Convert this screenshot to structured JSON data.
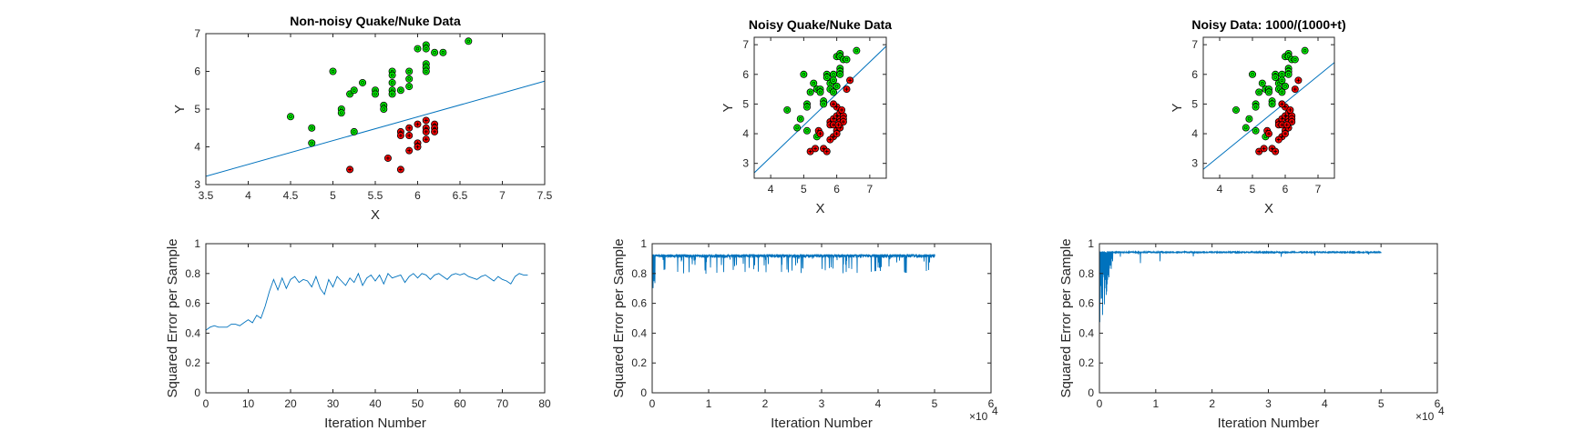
{
  "figure": {
    "background": "#ffffff"
  },
  "chart_data": [
    {
      "type": "scatter",
      "title": "Non-noisy Quake/Nuke Data",
      "xlabel": "X",
      "ylabel": "Y",
      "xlim": [
        3.5,
        7.5
      ],
      "ylim": [
        3,
        7
      ],
      "xticks": [
        3.5,
        4,
        4.5,
        5,
        5.5,
        6,
        6.5,
        7,
        7.5
      ],
      "yticks": [
        3,
        4,
        5,
        6,
        7
      ],
      "series": [
        {
          "color": "#00ff00",
          "marker": "circle-o",
          "points": [
            [
              4.5,
              4.8
            ],
            [
              4.75,
              4.5
            ],
            [
              4.75,
              4.1
            ],
            [
              5.0,
              6.0
            ],
            [
              5.1,
              5.0
            ],
            [
              5.1,
              4.9
            ],
            [
              5.2,
              5.4
            ],
            [
              5.25,
              5.5
            ],
            [
              5.35,
              5.7
            ],
            [
              5.25,
              4.4
            ],
            [
              5.5,
              5.5
            ],
            [
              5.5,
              5.4
            ],
            [
              5.6,
              5.1
            ],
            [
              5.6,
              5.0
            ],
            [
              5.7,
              6.0
            ],
            [
              5.7,
              5.9
            ],
            [
              5.7,
              5.7
            ],
            [
              5.7,
              5.5
            ],
            [
              5.7,
              5.4
            ],
            [
              5.8,
              5.5
            ],
            [
              5.9,
              6.0
            ],
            [
              5.9,
              5.8
            ],
            [
              5.9,
              5.6
            ],
            [
              6.0,
              6.6
            ],
            [
              6.1,
              6.7
            ],
            [
              6.1,
              6.6
            ],
            [
              6.1,
              6.2
            ],
            [
              6.1,
              6.1
            ],
            [
              6.1,
              6.0
            ],
            [
              6.2,
              6.5
            ],
            [
              6.3,
              6.5
            ],
            [
              6.6,
              6.8
            ]
          ]
        },
        {
          "color": "#ff0000",
          "marker": "circle-plus",
          "points": [
            [
              5.2,
              3.4
            ],
            [
              5.65,
              3.7
            ],
            [
              5.8,
              3.4
            ],
            [
              5.8,
              4.4
            ],
            [
              5.8,
              4.3
            ],
            [
              5.9,
              4.5
            ],
            [
              5.9,
              4.3
            ],
            [
              5.9,
              3.9
            ],
            [
              6.0,
              4.6
            ],
            [
              6.0,
              4.1
            ],
            [
              6.0,
              4.0
            ],
            [
              6.1,
              4.7
            ],
            [
              6.1,
              4.5
            ],
            [
              6.1,
              4.4
            ],
            [
              6.1,
              4.2
            ],
            [
              6.2,
              4.6
            ],
            [
              6.2,
              4.5
            ],
            [
              6.2,
              4.4
            ]
          ]
        }
      ],
      "line": {
        "color": "#0072bd",
        "from": [
          3.5,
          3.22
        ],
        "to": [
          7.5,
          5.74
        ]
      }
    },
    {
      "type": "scatter",
      "title": "Noisy Quake/Nuke Data",
      "xlabel": "X",
      "ylabel": "Y",
      "xlim": [
        3.5,
        7.5
      ],
      "ylim": [
        2.5,
        7.25
      ],
      "xticks": [
        4,
        5,
        6,
        7
      ],
      "yticks": [
        3,
        4,
        5,
        6,
        7
      ],
      "series": [
        {
          "color": "#00ff00",
          "marker": "circle-o",
          "points": [
            [
              4.5,
              4.8
            ],
            [
              4.9,
              4.5
            ],
            [
              5.0,
              6.0
            ],
            [
              5.1,
              5.0
            ],
            [
              5.1,
              4.9
            ],
            [
              5.2,
              5.4
            ],
            [
              5.3,
              5.7
            ],
            [
              5.1,
              4.1
            ],
            [
              4.8,
              4.2
            ],
            [
              5.4,
              5.5
            ],
            [
              5.5,
              5.5
            ],
            [
              5.5,
              5.4
            ],
            [
              5.6,
              5.1
            ],
            [
              5.6,
              5.0
            ],
            [
              5.7,
              6.0
            ],
            [
              5.7,
              5.9
            ],
            [
              5.8,
              5.7
            ],
            [
              5.8,
              5.5
            ],
            [
              5.9,
              5.4
            ],
            [
              5.9,
              6.0
            ],
            [
              5.9,
              5.8
            ],
            [
              6.0,
              5.6
            ],
            [
              6.0,
              6.6
            ],
            [
              6.1,
              6.7
            ],
            [
              6.1,
              6.6
            ],
            [
              6.1,
              6.2
            ],
            [
              6.1,
              6.1
            ],
            [
              6.1,
              6.0
            ],
            [
              6.2,
              6.5
            ],
            [
              6.3,
              6.5
            ],
            [
              6.6,
              6.8
            ],
            [
              5.4,
              3.9
            ]
          ]
        },
        {
          "color": "#ff0000",
          "marker": "circle-plus",
          "points": [
            [
              5.2,
              3.4
            ],
            [
              5.35,
              3.5
            ],
            [
              5.45,
              4.1
            ],
            [
              5.5,
              4.0
            ],
            [
              5.6,
              3.5
            ],
            [
              5.7,
              3.4
            ],
            [
              5.8,
              4.4
            ],
            [
              5.8,
              4.3
            ],
            [
              5.9,
              4.5
            ],
            [
              5.9,
              4.3
            ],
            [
              5.9,
              3.9
            ],
            [
              6.0,
              4.6
            ],
            [
              6.0,
              4.1
            ],
            [
              6.0,
              4.0
            ],
            [
              6.1,
              4.7
            ],
            [
              6.1,
              4.5
            ],
            [
              6.1,
              4.4
            ],
            [
              6.1,
              4.2
            ],
            [
              6.2,
              4.6
            ],
            [
              6.2,
              4.5
            ],
            [
              6.2,
              4.4
            ],
            [
              5.8,
              3.8
            ],
            [
              6.0,
              4.9
            ],
            [
              6.3,
              5.5
            ],
            [
              6.4,
              5.8
            ],
            [
              5.9,
              5.0
            ],
            [
              6.05,
              4.3
            ],
            [
              6.15,
              4.8
            ]
          ]
        }
      ],
      "line": {
        "color": "#0072bd",
        "from": [
          3.5,
          2.68
        ],
        "to": [
          7.5,
          6.95
        ]
      }
    },
    {
      "type": "scatter",
      "title": "Noisy Data: 1000/(1000+t)",
      "xlabel": "X",
      "ylabel": "Y",
      "xlim": [
        3.5,
        7.5
      ],
      "ylim": [
        2.5,
        7.25
      ],
      "xticks": [
        4,
        5,
        6,
        7
      ],
      "yticks": [
        3,
        4,
        5,
        6,
        7
      ],
      "series": [
        {
          "color": "#00ff00",
          "marker": "circle-o",
          "points": [
            [
              4.5,
              4.8
            ],
            [
              4.9,
              4.5
            ],
            [
              5.0,
              6.0
            ],
            [
              5.1,
              5.0
            ],
            [
              5.1,
              4.9
            ],
            [
              5.2,
              5.4
            ],
            [
              5.3,
              5.7
            ],
            [
              5.1,
              4.1
            ],
            [
              4.8,
              4.2
            ],
            [
              5.4,
              5.5
            ],
            [
              5.5,
              5.5
            ],
            [
              5.5,
              5.4
            ],
            [
              5.6,
              5.1
            ],
            [
              5.6,
              5.0
            ],
            [
              5.7,
              6.0
            ],
            [
              5.7,
              5.9
            ],
            [
              5.8,
              5.7
            ],
            [
              5.8,
              5.5
            ],
            [
              5.9,
              5.4
            ],
            [
              5.9,
              6.0
            ],
            [
              5.9,
              5.8
            ],
            [
              6.0,
              5.6
            ],
            [
              6.0,
              6.6
            ],
            [
              6.1,
              6.7
            ],
            [
              6.1,
              6.6
            ],
            [
              6.1,
              6.2
            ],
            [
              6.1,
              6.1
            ],
            [
              6.1,
              6.0
            ],
            [
              6.2,
              6.5
            ],
            [
              6.3,
              6.5
            ],
            [
              6.6,
              6.8
            ],
            [
              5.4,
              3.9
            ]
          ]
        },
        {
          "color": "#ff0000",
          "marker": "circle-plus",
          "points": [
            [
              5.2,
              3.4
            ],
            [
              5.35,
              3.5
            ],
            [
              5.45,
              4.1
            ],
            [
              5.5,
              4.0
            ],
            [
              5.6,
              3.5
            ],
            [
              5.7,
              3.4
            ],
            [
              5.8,
              4.4
            ],
            [
              5.8,
              4.3
            ],
            [
              5.9,
              4.5
            ],
            [
              5.9,
              4.3
            ],
            [
              5.9,
              3.9
            ],
            [
              6.0,
              4.6
            ],
            [
              6.0,
              4.1
            ],
            [
              6.0,
              4.0
            ],
            [
              6.1,
              4.7
            ],
            [
              6.1,
              4.5
            ],
            [
              6.1,
              4.4
            ],
            [
              6.1,
              4.2
            ],
            [
              6.2,
              4.6
            ],
            [
              6.2,
              4.5
            ],
            [
              6.2,
              4.4
            ],
            [
              5.8,
              3.8
            ],
            [
              6.0,
              4.9
            ],
            [
              6.3,
              5.5
            ],
            [
              6.4,
              5.8
            ],
            [
              5.9,
              5.0
            ],
            [
              6.05,
              4.3
            ],
            [
              6.15,
              4.8
            ]
          ]
        }
      ],
      "line": {
        "color": "#0072bd",
        "from": [
          3.5,
          2.8
        ],
        "to": [
          7.5,
          6.4
        ]
      }
    },
    {
      "type": "line",
      "title": "",
      "xlabel": "Iteration Number",
      "ylabel": "Squared Error per Sample",
      "xlim": [
        0,
        80
      ],
      "ylim": [
        0,
        1
      ],
      "xticks": [
        0,
        10,
        20,
        30,
        40,
        50,
        60,
        70,
        80
      ],
      "yticks": [
        0,
        0.2,
        0.4,
        0.6,
        0.8,
        1
      ],
      "x_multiplier": "",
      "series": [
        {
          "color": "#0072bd",
          "x": [
            0,
            1,
            2,
            3,
            4,
            5,
            6,
            7,
            8,
            9,
            10,
            11,
            12,
            13,
            14,
            15,
            16,
            17,
            18,
            19,
            20,
            21,
            22,
            23,
            24,
            25,
            26,
            27,
            28,
            29,
            30,
            31,
            32,
            33,
            34,
            35,
            36,
            37,
            38,
            39,
            40,
            41,
            42,
            43,
            44,
            45,
            46,
            47,
            48,
            49,
            50,
            51,
            52,
            53,
            54,
            55,
            56,
            57,
            58,
            59,
            60,
            61,
            62,
            63,
            64,
            65,
            66,
            67,
            68,
            69,
            70,
            71,
            72,
            73,
            74,
            75,
            76
          ],
          "y": [
            0.42,
            0.44,
            0.45,
            0.44,
            0.44,
            0.44,
            0.46,
            0.46,
            0.45,
            0.47,
            0.49,
            0.47,
            0.52,
            0.5,
            0.58,
            0.68,
            0.76,
            0.69,
            0.77,
            0.7,
            0.76,
            0.78,
            0.74,
            0.76,
            0.75,
            0.71,
            0.78,
            0.7,
            0.66,
            0.76,
            0.71,
            0.78,
            0.75,
            0.72,
            0.77,
            0.74,
            0.8,
            0.72,
            0.77,
            0.79,
            0.75,
            0.79,
            0.73,
            0.8,
            0.77,
            0.78,
            0.79,
            0.74,
            0.78,
            0.8,
            0.77,
            0.8,
            0.79,
            0.76,
            0.79,
            0.8,
            0.78,
            0.76,
            0.79,
            0.8,
            0.79,
            0.8,
            0.78,
            0.77,
            0.76,
            0.78,
            0.79,
            0.77,
            0.75,
            0.78,
            0.76,
            0.75,
            0.73,
            0.78,
            0.8,
            0.79,
            0.79
          ]
        }
      ]
    },
    {
      "type": "line",
      "title": "",
      "xlabel": "Iteration Number",
      "ylabel": "Squared Error per Sample",
      "xlim": [
        0,
        60000
      ],
      "ylim": [
        0,
        1
      ],
      "xticks": [
        0,
        10000,
        20000,
        30000,
        40000,
        50000,
        60000
      ],
      "xticklabels": [
        "0",
        "1",
        "2",
        "3",
        "4",
        "5",
        "6"
      ],
      "yticks": [
        0,
        0.2,
        0.4,
        0.6,
        0.8,
        1
      ],
      "x_multiplier": "×10",
      "x_multiplier_exp": "4",
      "series": [
        {
          "color": "#0072bd",
          "noisy": true,
          "n_points": 50000,
          "baseline": 0.92,
          "dip_to": 0.65,
          "note_shape": "dense band near 0.9 with frequent downward spikes to ~0.78-0.85"
        }
      ]
    },
    {
      "type": "line",
      "title": "",
      "xlabel": "Iteration Number",
      "ylabel": "Squared Error per Sample",
      "xlim": [
        0,
        60000
      ],
      "ylim": [
        0,
        1
      ],
      "xticks": [
        0,
        10000,
        20000,
        30000,
        40000,
        50000,
        60000
      ],
      "xticklabels": [
        "0",
        "1",
        "2",
        "3",
        "4",
        "5",
        "6"
      ],
      "yticks": [
        0,
        0.2,
        0.4,
        0.6,
        0.8,
        1
      ],
      "x_multiplier": "×10",
      "x_multiplier_exp": "4",
      "series": [
        {
          "color": "#0072bd",
          "noisy": true,
          "n_points": 50000,
          "baseline": 0.94,
          "dip_to": 0.42,
          "note_shape": "large early oscillations down to ~0.42 decaying, then flat ~0.94"
        }
      ]
    }
  ]
}
